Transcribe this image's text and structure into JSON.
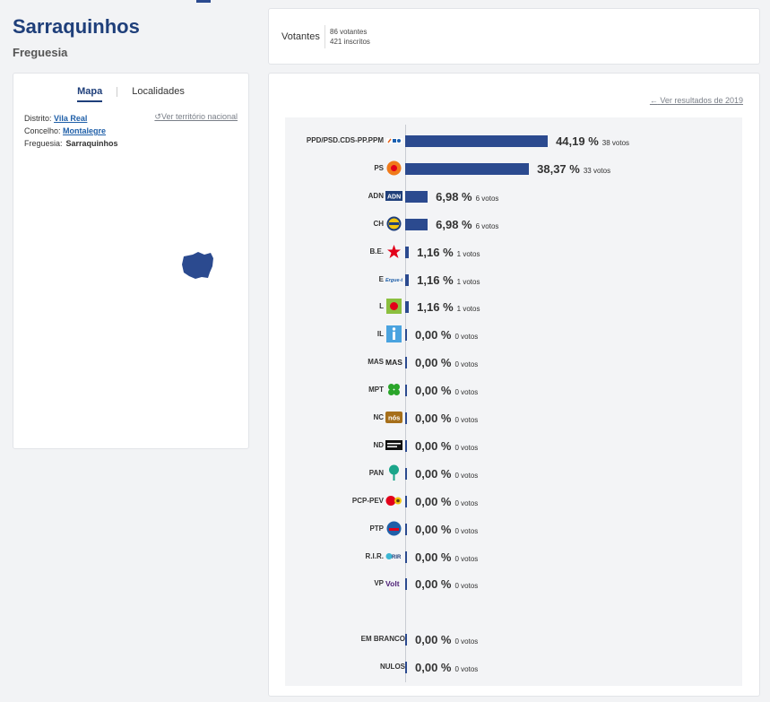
{
  "header": {
    "title": "Sarraquinhos",
    "subtitle": "Freguesia"
  },
  "map_card": {
    "tabs": [
      "Mapa",
      "Localidades"
    ],
    "national_link": "Ver território nacional",
    "distrito_label": "Distrito:",
    "distrito_value": "Vila Real",
    "concelho_label": "Concelho:",
    "concelho_value": "Montalegre",
    "freguesia_label": "Freguesia:",
    "freguesia_value": "Sarraquinhos"
  },
  "votantes": {
    "label": "Votantes",
    "votantes": "86 votantes",
    "inscritos": "421 inscritos"
  },
  "results": {
    "prev_link": "Ver resultados de 2019",
    "bar_color": "#2b4a8f",
    "parties": [
      {
        "name": "PPD/PSD.CDS-PP.PPM",
        "pct_text": "44,19 %",
        "pct": 44.19,
        "votes_text": "38 votos",
        "icon": "ad-coalition-logo"
      },
      {
        "name": "PS",
        "pct_text": "38,37 %",
        "pct": 38.37,
        "votes_text": "33 votos",
        "icon": "ps-rose-logo"
      },
      {
        "name": "ADN",
        "pct_text": "6,98 %",
        "pct": 6.98,
        "votes_text": "6 votos",
        "icon": "adn-logo"
      },
      {
        "name": "CH",
        "pct_text": "6,98 %",
        "pct": 6.98,
        "votes_text": "6 votos",
        "icon": "chega-logo"
      },
      {
        "name": "B.E.",
        "pct_text": "1,16 %",
        "pct": 1.16,
        "votes_text": "1 votos",
        "icon": "be-star-logo"
      },
      {
        "name": "E",
        "pct_text": "1,16 %",
        "pct": 1.16,
        "votes_text": "1 votos",
        "icon": "ergue-te-logo"
      },
      {
        "name": "L",
        "pct_text": "1,16 %",
        "pct": 1.16,
        "votes_text": "1 votos",
        "icon": "livre-logo"
      },
      {
        "name": "IL",
        "pct_text": "0,00 %",
        "pct": 0,
        "votes_text": "0 votos",
        "icon": "il-logo"
      },
      {
        "name": "MAS",
        "pct_text": "0,00 %",
        "pct": 0,
        "votes_text": "0 votos",
        "icon": "mas-logo"
      },
      {
        "name": "MPT",
        "pct_text": "0,00 %",
        "pct": 0,
        "votes_text": "0 votos",
        "icon": "mpt-clover-logo"
      },
      {
        "name": "NC",
        "pct_text": "0,00 %",
        "pct": 0,
        "votes_text": "0 votos",
        "icon": "nc-logo"
      },
      {
        "name": "ND",
        "pct_text": "0,00 %",
        "pct": 0,
        "votes_text": "0 votos",
        "icon": "nd-logo"
      },
      {
        "name": "PAN",
        "pct_text": "0,00 %",
        "pct": 0,
        "votes_text": "0 votos",
        "icon": "pan-tree-logo"
      },
      {
        "name": "PCP-PEV",
        "pct_text": "0,00 %",
        "pct": 0,
        "votes_text": "0 votos",
        "icon": "cdu-logo"
      },
      {
        "name": "PTP",
        "pct_text": "0,00 %",
        "pct": 0,
        "votes_text": "0 votos",
        "icon": "ptp-logo"
      },
      {
        "name": "R.I.R.",
        "pct_text": "0,00 %",
        "pct": 0,
        "votes_text": "0 votos",
        "icon": "rir-logo"
      },
      {
        "name": "VP",
        "pct_text": "0,00 %",
        "pct": 0,
        "votes_text": "0 votos",
        "icon": "volt-logo"
      },
      {
        "name": "EM BRANCO",
        "pct_text": "0,00 %",
        "pct": 0,
        "votes_text": "0 votos",
        "icon": ""
      },
      {
        "name": "NULOS",
        "pct_text": "0,00 %",
        "pct": 0,
        "votes_text": "0 votos",
        "icon": ""
      }
    ]
  }
}
